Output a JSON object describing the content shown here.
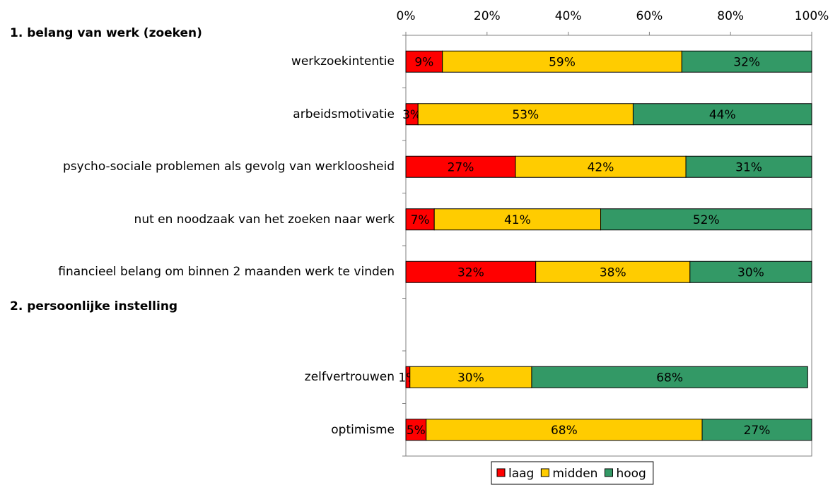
{
  "chart_data": {
    "type": "stacked-barh",
    "groups": [
      {
        "label": "1. belang van werk (zoeken)",
        "start": 0
      },
      {
        "label": "2. persoonlijke instelling",
        "start": 5
      }
    ],
    "categories": [
      "werkzoekintentie",
      "arbeidsmotivatie",
      "psycho-sociale problemen als gevolg van werkloosheid",
      "nut en noodzaak van het zoeken naar werk",
      "financieel belang om binnen 2 maanden werk te vinden",
      null,
      "zelfvertrouwen",
      "optimisme"
    ],
    "series": [
      {
        "name": "laag",
        "color": "#ff0000",
        "values": [
          9,
          3,
          27,
          7,
          32,
          null,
          1,
          5
        ],
        "value_labels": [
          "9%",
          "3%",
          "27%",
          "7%",
          "32%",
          null,
          "1%",
          "5%"
        ]
      },
      {
        "name": "midden",
        "color": "#ffcc00",
        "values": [
          59,
          53,
          42,
          41,
          38,
          null,
          30,
          68
        ],
        "value_labels": [
          "59%",
          "53%",
          "42%",
          "41%",
          "38%",
          null,
          "30%",
          "68%"
        ]
      },
      {
        "name": "hoog",
        "color": "#339966",
        "values": [
          32,
          44,
          31,
          52,
          30,
          null,
          68,
          27
        ],
        "value_labels": [
          "32%",
          "44%",
          "31%",
          "52%",
          "30%",
          null,
          "68%",
          "27%"
        ]
      }
    ],
    "xlim": [
      0,
      100
    ],
    "xticks": [
      {
        "value": 0,
        "label": "0%"
      },
      {
        "value": 20,
        "label": "20%"
      },
      {
        "value": 40,
        "label": "40%"
      },
      {
        "value": 60,
        "label": "60%"
      },
      {
        "value": 80,
        "label": "80%"
      },
      {
        "value": 100,
        "label": "100%"
      }
    ],
    "legend": "bottom"
  }
}
